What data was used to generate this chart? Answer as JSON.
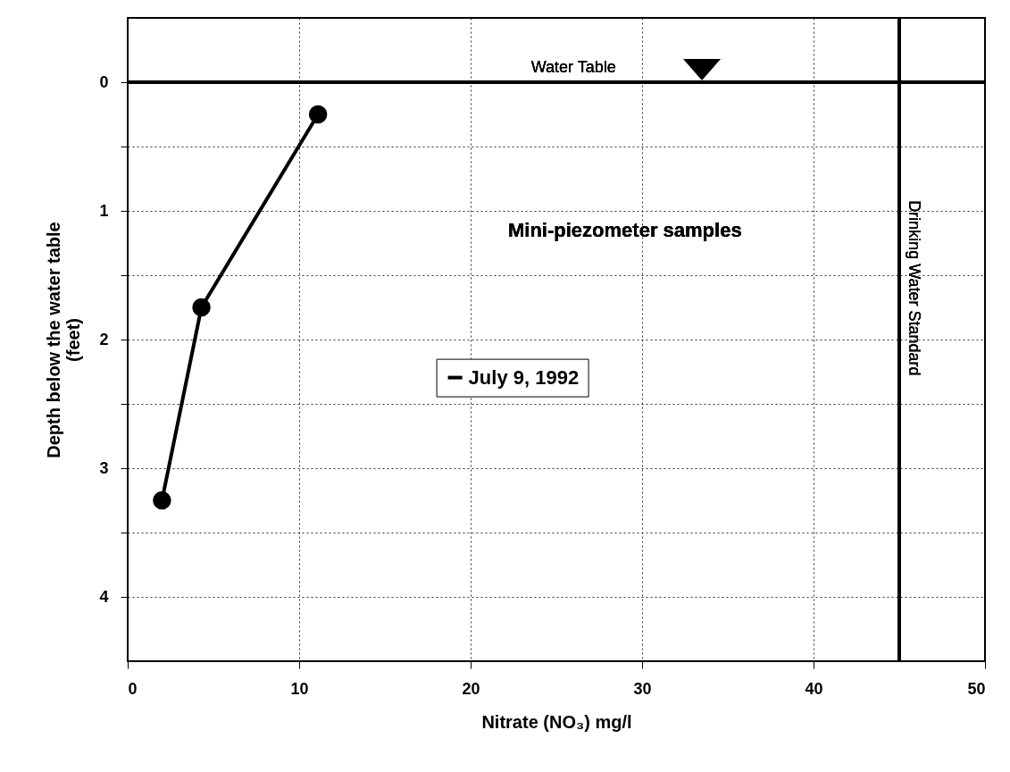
{
  "chart_data": {
    "type": "line",
    "xlabel": "Nitrate  (NO₃)  mg/l",
    "ylabel": "Depth below the water table\n(feet)",
    "x": [
      11.1,
      4.3,
      2.0
    ],
    "series": [
      {
        "name": "July 9, 1992",
        "color": "#000000",
        "values": [
          0.25,
          1.75,
          3.25
        ]
      }
    ],
    "xlim": [
      0,
      50
    ],
    "xticks": [
      0,
      10,
      20,
      30,
      40,
      50
    ],
    "ylim": [
      4.5,
      -0.5
    ],
    "yticks": [
      0,
      {
        "value": 0.5,
        "label": null
      },
      1,
      {
        "value": 1.5,
        "label": null
      },
      2,
      {
        "value": 2.5,
        "label": null
      },
      3,
      {
        "value": 3.5,
        "label": null
      },
      4
    ],
    "ref_lines": [
      {
        "axis": "y",
        "value": 0,
        "label": "Water Table"
      },
      {
        "axis": "x",
        "value": 45,
        "label": "Drinking Water Standard"
      }
    ],
    "annotations": [
      "Mini-piezometer samples"
    ],
    "grid": true,
    "legend": "center",
    "marker": "circle",
    "line_style": "solid"
  }
}
